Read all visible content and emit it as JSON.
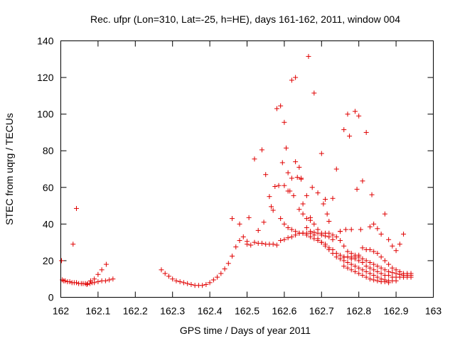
{
  "chart_data": {
    "type": "scatter",
    "title": "Rec. ufpr (Lon=310, Lat=-25, h=HE), days 161-162, 2011, window 004",
    "xlabel": "GPS time / Days of year 2011",
    "ylabel": "STEC from uqrg / TECUs",
    "xlim": [
      162,
      163
    ],
    "ylim": [
      0,
      140
    ],
    "xticks": [
      162,
      162.1,
      162.2,
      162.3,
      162.4,
      162.5,
      162.6,
      162.7,
      162.8,
      162.9,
      163
    ],
    "xtick_labels": [
      "162",
      "162.1",
      "162.2",
      "162.3",
      "162.4",
      "162.5",
      "162.6",
      "162.7",
      "162.8",
      "162.9",
      "163"
    ],
    "yticks": [
      0,
      20,
      40,
      60,
      80,
      100,
      120,
      140
    ],
    "ytick_labels": [
      "0",
      "20",
      "40",
      "60",
      "80",
      "100",
      "120",
      "140"
    ],
    "grid": false,
    "marker": "+",
    "color": "#e00000",
    "points": [
      [
        162.002,
        20
      ],
      [
        162.004,
        9.5
      ],
      [
        162.008,
        9
      ],
      [
        162.012,
        9
      ],
      [
        162.018,
        8.5
      ],
      [
        162.024,
        8.5
      ],
      [
        162.03,
        8
      ],
      [
        162.036,
        8
      ],
      [
        162.042,
        8
      ],
      [
        162.048,
        7.5
      ],
      [
        162.055,
        7.5
      ],
      [
        162.06,
        7.5
      ],
      [
        162.066,
        7.5
      ],
      [
        162.072,
        7.5
      ],
      [
        162.078,
        7.5
      ],
      [
        162.084,
        8
      ],
      [
        162.09,
        8
      ],
      [
        162.1,
        8.5
      ],
      [
        162.11,
        9
      ],
      [
        162.12,
        9
      ],
      [
        162.13,
        9.5
      ],
      [
        162.14,
        10
      ],
      [
        162.033,
        29
      ],
      [
        162.042,
        48.5
      ],
      [
        162.07,
        7
      ],
      [
        162.08,
        9
      ],
      [
        162.09,
        10
      ],
      [
        162.1,
        12.5
      ],
      [
        162.11,
        15
      ],
      [
        162.122,
        18
      ],
      [
        162.27,
        15
      ],
      [
        162.28,
        13
      ],
      [
        162.29,
        11.5
      ],
      [
        162.3,
        10
      ],
      [
        162.31,
        9
      ],
      [
        162.32,
        8.5
      ],
      [
        162.33,
        8
      ],
      [
        162.34,
        7.5
      ],
      [
        162.35,
        7
      ],
      [
        162.36,
        6.5
      ],
      [
        162.37,
        6.5
      ],
      [
        162.38,
        6.5
      ],
      [
        162.39,
        7
      ],
      [
        162.4,
        8
      ],
      [
        162.41,
        9.5
      ],
      [
        162.42,
        11
      ],
      [
        162.43,
        13
      ],
      [
        162.44,
        15.5
      ],
      [
        162.45,
        18.5
      ],
      [
        162.46,
        22.5
      ],
      [
        162.47,
        27.5
      ],
      [
        162.48,
        31
      ],
      [
        162.49,
        33
      ],
      [
        162.48,
        40
      ],
      [
        162.5,
        29
      ],
      [
        162.51,
        28.5
      ],
      [
        162.52,
        30
      ],
      [
        162.53,
        29.5
      ],
      [
        162.54,
        29.5
      ],
      [
        162.55,
        29
      ],
      [
        162.56,
        29
      ],
      [
        162.57,
        29
      ],
      [
        162.58,
        28.5
      ],
      [
        162.59,
        31
      ],
      [
        162.6,
        31.5
      ],
      [
        162.61,
        32.5
      ],
      [
        162.62,
        33
      ],
      [
        162.63,
        34
      ],
      [
        162.64,
        35
      ],
      [
        162.65,
        35
      ],
      [
        162.66,
        35
      ],
      [
        162.67,
        35
      ],
      [
        162.68,
        35.5
      ],
      [
        162.69,
        35
      ],
      [
        162.7,
        34
      ],
      [
        162.71,
        33.5
      ],
      [
        162.72,
        33
      ],
      [
        162.73,
        31.5
      ],
      [
        162.46,
        43
      ],
      [
        162.5,
        30.5
      ],
      [
        162.505,
        43.5
      ],
      [
        162.52,
        75.5
      ],
      [
        162.53,
        36.5
      ],
      [
        162.54,
        80.5
      ],
      [
        162.545,
        41
      ],
      [
        162.55,
        67
      ],
      [
        162.56,
        55
      ],
      [
        162.565,
        49.5
      ],
      [
        162.57,
        47.5
      ],
      [
        162.575,
        60.5
      ],
      [
        162.58,
        103
      ],
      [
        162.585,
        61
      ],
      [
        162.59,
        104.5
      ],
      [
        162.595,
        73.5
      ],
      [
        162.6,
        95.5
      ],
      [
        162.605,
        81.5
      ],
      [
        162.61,
        68
      ],
      [
        162.615,
        58
      ],
      [
        162.62,
        118.5
      ],
      [
        162.625,
        55.5
      ],
      [
        162.63,
        120
      ],
      [
        162.635,
        65.5
      ],
      [
        162.64,
        48
      ],
      [
        162.645,
        64.5
      ],
      [
        162.65,
        45.5
      ],
      [
        162.66,
        55.5
      ],
      [
        162.665,
        131.5
      ],
      [
        162.67,
        43.5
      ],
      [
        162.675,
        60
      ],
      [
        162.68,
        111.5
      ],
      [
        162.69,
        57
      ],
      [
        162.7,
        78.5
      ],
      [
        162.705,
        51
      ],
      [
        162.71,
        53.5
      ],
      [
        162.715,
        45.5
      ],
      [
        162.72,
        41.5
      ],
      [
        162.73,
        54
      ],
      [
        162.74,
        70
      ],
      [
        162.75,
        36
      ],
      [
        162.76,
        91.5
      ],
      [
        162.765,
        37
      ],
      [
        162.77,
        100
      ],
      [
        162.775,
        88
      ],
      [
        162.78,
        37
      ],
      [
        162.79,
        101.5
      ],
      [
        162.795,
        59
      ],
      [
        162.8,
        99
      ],
      [
        162.805,
        37
      ],
      [
        162.81,
        63.5
      ],
      [
        162.82,
        90
      ],
      [
        162.83,
        38.5
      ],
      [
        162.835,
        56
      ],
      [
        162.84,
        40
      ],
      [
        162.85,
        37.5
      ],
      [
        162.86,
        34.5
      ],
      [
        162.87,
        45.5
      ],
      [
        162.88,
        31.5
      ],
      [
        162.89,
        28
      ],
      [
        162.9,
        25.5
      ],
      [
        162.91,
        29
      ],
      [
        162.92,
        34.5
      ],
      [
        162.6,
        61
      ],
      [
        162.61,
        58
      ],
      [
        162.62,
        65
      ],
      [
        162.63,
        74
      ],
      [
        162.64,
        71
      ],
      [
        162.645,
        65
      ],
      [
        162.65,
        51
      ],
      [
        162.66,
        43
      ],
      [
        162.67,
        42
      ],
      [
        162.68,
        40
      ],
      [
        162.69,
        37
      ],
      [
        162.7,
        35
      ],
      [
        162.71,
        35
      ],
      [
        162.72,
        35
      ],
      [
        162.73,
        34
      ],
      [
        162.74,
        33
      ],
      [
        162.75,
        31
      ],
      [
        162.76,
        28
      ],
      [
        162.77,
        25
      ],
      [
        162.78,
        24
      ],
      [
        162.79,
        23
      ],
      [
        162.8,
        23
      ],
      [
        162.81,
        21
      ],
      [
        162.82,
        20
      ],
      [
        162.83,
        19
      ],
      [
        162.84,
        18
      ],
      [
        162.85,
        17
      ],
      [
        162.86,
        16
      ],
      [
        162.87,
        15
      ],
      [
        162.88,
        14
      ],
      [
        162.89,
        13.5
      ],
      [
        162.9,
        13
      ],
      [
        162.91,
        12.5
      ],
      [
        162.92,
        12
      ],
      [
        162.93,
        12
      ],
      [
        162.94,
        12
      ],
      [
        162.59,
        43
      ],
      [
        162.6,
        40
      ],
      [
        162.61,
        38
      ],
      [
        162.62,
        37
      ],
      [
        162.63,
        36
      ],
      [
        162.64,
        35
      ],
      [
        162.65,
        35
      ],
      [
        162.66,
        34
      ],
      [
        162.67,
        33
      ],
      [
        162.68,
        32
      ],
      [
        162.69,
        31
      ],
      [
        162.7,
        30
      ],
      [
        162.71,
        29
      ],
      [
        162.72,
        27
      ],
      [
        162.73,
        26
      ],
      [
        162.74,
        24
      ],
      [
        162.75,
        23
      ],
      [
        162.76,
        22
      ],
      [
        162.77,
        22
      ],
      [
        162.78,
        21
      ],
      [
        162.79,
        21
      ],
      [
        162.8,
        20
      ],
      [
        162.81,
        19
      ],
      [
        162.82,
        17
      ],
      [
        162.83,
        16
      ],
      [
        162.84,
        15
      ],
      [
        162.85,
        14
      ],
      [
        162.86,
        13
      ],
      [
        162.87,
        12
      ],
      [
        162.88,
        12
      ],
      [
        162.89,
        11
      ],
      [
        162.9,
        11
      ],
      [
        162.91,
        11
      ],
      [
        162.92,
        11
      ],
      [
        162.93,
        11
      ],
      [
        162.94,
        11
      ],
      [
        162.66,
        38
      ],
      [
        162.67,
        36
      ],
      [
        162.68,
        34
      ],
      [
        162.69,
        32
      ],
      [
        162.7,
        30
      ],
      [
        162.71,
        28
      ],
      [
        162.72,
        26
      ],
      [
        162.73,
        24
      ],
      [
        162.74,
        22
      ],
      [
        162.75,
        21
      ],
      [
        162.76,
        20
      ],
      [
        162.77,
        19
      ],
      [
        162.78,
        18
      ],
      [
        162.79,
        17
      ],
      [
        162.8,
        16
      ],
      [
        162.81,
        15
      ],
      [
        162.82,
        14
      ],
      [
        162.83,
        13
      ],
      [
        162.84,
        12
      ],
      [
        162.85,
        11
      ],
      [
        162.86,
        10
      ],
      [
        162.87,
        9.5
      ],
      [
        162.88,
        9
      ],
      [
        162.89,
        9
      ],
      [
        162.9,
        9
      ],
      [
        162.75,
        36
      ],
      [
        162.76,
        22
      ],
      [
        162.77,
        22
      ],
      [
        162.78,
        22
      ],
      [
        162.79,
        22
      ],
      [
        162.8,
        22
      ],
      [
        162.81,
        27
      ],
      [
        162.82,
        26
      ],
      [
        162.83,
        26
      ],
      [
        162.84,
        25
      ],
      [
        162.85,
        24
      ],
      [
        162.86,
        22
      ],
      [
        162.87,
        20
      ],
      [
        162.88,
        18
      ],
      [
        162.89,
        16
      ],
      [
        162.9,
        15
      ],
      [
        162.91,
        14
      ],
      [
        162.92,
        13
      ],
      [
        162.93,
        13
      ],
      [
        162.94,
        13
      ],
      [
        162.76,
        17
      ],
      [
        162.77,
        16
      ],
      [
        162.78,
        15
      ],
      [
        162.79,
        14
      ],
      [
        162.8,
        13
      ],
      [
        162.81,
        12
      ],
      [
        162.82,
        11
      ],
      [
        162.83,
        10
      ],
      [
        162.84,
        9.5
      ],
      [
        162.85,
        9
      ],
      [
        162.86,
        8.5
      ],
      [
        162.87,
        8.5
      ],
      [
        162.88,
        8
      ]
    ]
  }
}
